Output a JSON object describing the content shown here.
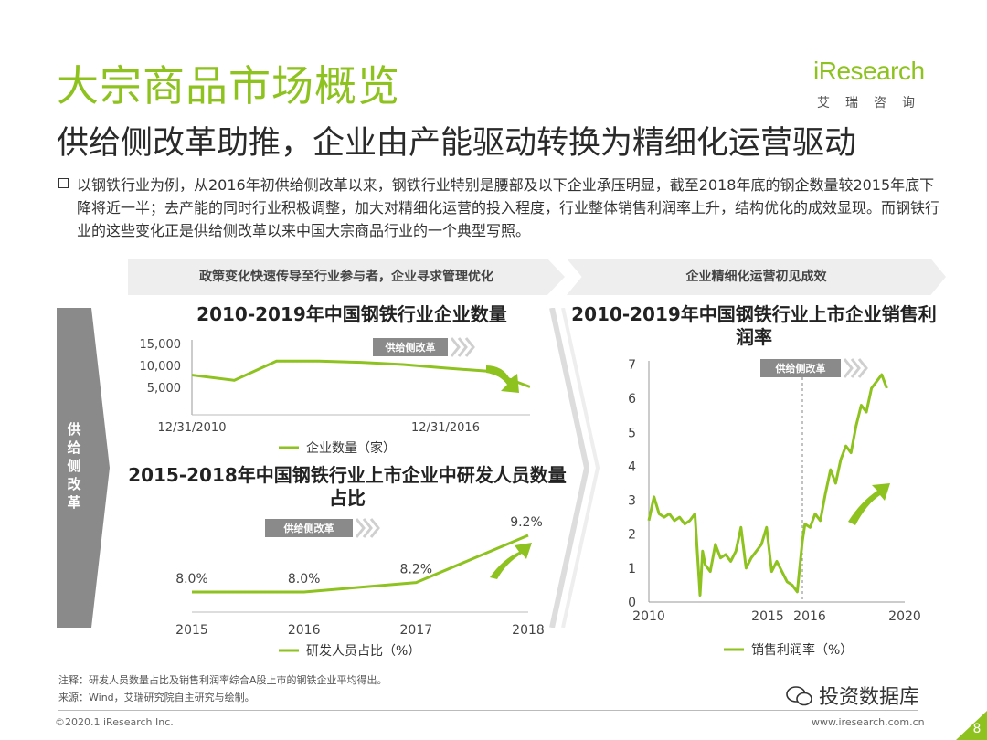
{
  "header": {
    "title": "大宗商品市场概览",
    "subtitle": "供给侧改革助推，企业由产能驱动转换为精细化运营驱动"
  },
  "logo": {
    "word": "iResearch",
    "cn": "艾瑞咨询"
  },
  "bullet": "以钢铁行业为例，从2016年初供给侧改革以来，钢铁行业特别是腰部及以下企业承压明显，截至2018年底的钢企数量较2015年底下降将近一半；去产能的同时行业积极调整，加大对精细化运营的投入程度，行业整体销售利润率上升，结构优化的成效显现。而钢铁行业的这些变化正是供给侧改革以来中国大宗商品行业的一个典型写照。",
  "banners": {
    "left": "政策变化快速传导至行业参与者，企业寻求管理优化",
    "right": "企业精细化运营初见成效"
  },
  "side_label": "供给侧改革",
  "chart_data": [
    {
      "type": "line",
      "title": "2010-2019年中国钢铁行业企业数量",
      "series": [
        {
          "name": "企业数量（家）",
          "x": [
            "2010-12-31",
            "2011-12-31",
            "2012-12-31",
            "2013-12-31",
            "2014-12-31",
            "2015-12-31",
            "2016-12-31",
            "2017-12-31",
            "2018-12-31"
          ],
          "values": [
            7800,
            6600,
            11000,
            11000,
            10700,
            10200,
            9400,
            8700,
            5100
          ]
        }
      ],
      "xticks": [
        "12/31/2010",
        "12/31/2016"
      ],
      "yticks": [
        "15,000",
        "10,000",
        "5,000"
      ],
      "ylim": [
        0,
        15000
      ],
      "annotation": "供给侧改革",
      "legend": "bottom"
    },
    {
      "type": "line",
      "title": "2015-2018年中国钢铁行业上市企业中研发人员数量占比",
      "series": [
        {
          "name": "研发人员占比（%）",
          "x": [
            "2015",
            "2016",
            "2017",
            "2018"
          ],
          "values": [
            8.0,
            8.0,
            8.2,
            9.2
          ],
          "labels": [
            "8.0%",
            "8.0%",
            "8.2%",
            "9.2%"
          ]
        }
      ],
      "annotation": "供给侧改革",
      "legend": "bottom"
    },
    {
      "type": "line",
      "title": "2010-2019年中国钢铁行业上市企业销售利润率",
      "series": [
        {
          "name": "销售利润率（%）",
          "x": [
            2010.0,
            2010.2,
            2010.4,
            2010.6,
            2010.8,
            2011.0,
            2011.2,
            2011.4,
            2011.6,
            2011.8,
            2012.0,
            2012.1,
            2012.2,
            2012.4,
            2012.6,
            2012.8,
            2013.0,
            2013.2,
            2013.4,
            2013.6,
            2013.8,
            2014.0,
            2014.2,
            2014.4,
            2014.6,
            2014.8,
            2015.0,
            2015.2,
            2015.4,
            2015.6,
            2015.8,
            2016.0,
            2016.1,
            2016.3,
            2016.5,
            2016.7,
            2016.9,
            2017.1,
            2017.3,
            2017.5,
            2017.7,
            2017.9,
            2018.1,
            2018.3,
            2018.5,
            2018.7,
            2018.9,
            2019.1,
            2019.3
          ],
          "values": [
            2.4,
            3.1,
            2.6,
            2.5,
            2.6,
            2.4,
            2.5,
            2.3,
            2.4,
            2.6,
            0.2,
            1.5,
            1.1,
            0.9,
            1.7,
            1.3,
            1.4,
            1.2,
            1.5,
            2.2,
            1.0,
            1.3,
            1.5,
            1.7,
            2.2,
            0.9,
            1.2,
            0.9,
            0.6,
            0.5,
            0.3,
            1.8,
            2.3,
            2.2,
            2.6,
            2.4,
            3.2,
            3.9,
            3.5,
            4.2,
            4.6,
            4.4,
            5.2,
            5.8,
            5.6,
            6.3,
            6.5,
            6.7,
            6.3
          ]
        }
      ],
      "xticks": [
        "2010",
        "2015",
        "2016",
        "2020"
      ],
      "yticks": [
        "0",
        "1",
        "2",
        "3",
        "4",
        "5",
        "6",
        "7"
      ],
      "xlim": [
        2010,
        2020
      ],
      "ylim": [
        0,
        7
      ],
      "annotation": "供给侧改革",
      "legend": "bottom"
    }
  ],
  "notes": {
    "note": "注释：研发人员数量占比及销售利润率综合A股上市的钢铁企业平均得出。",
    "source": "来源：Wind，艾瑞研究院自主研究与绘制。"
  },
  "footer": {
    "copyright": "©2020.1 iResearch Inc.",
    "url": "www.iresearch.com.cn",
    "page": "8"
  },
  "watermark": "投资数据库",
  "colors": {
    "accent": "#8dc21f",
    "gray": "#888888",
    "banner": "#eeeeee"
  }
}
